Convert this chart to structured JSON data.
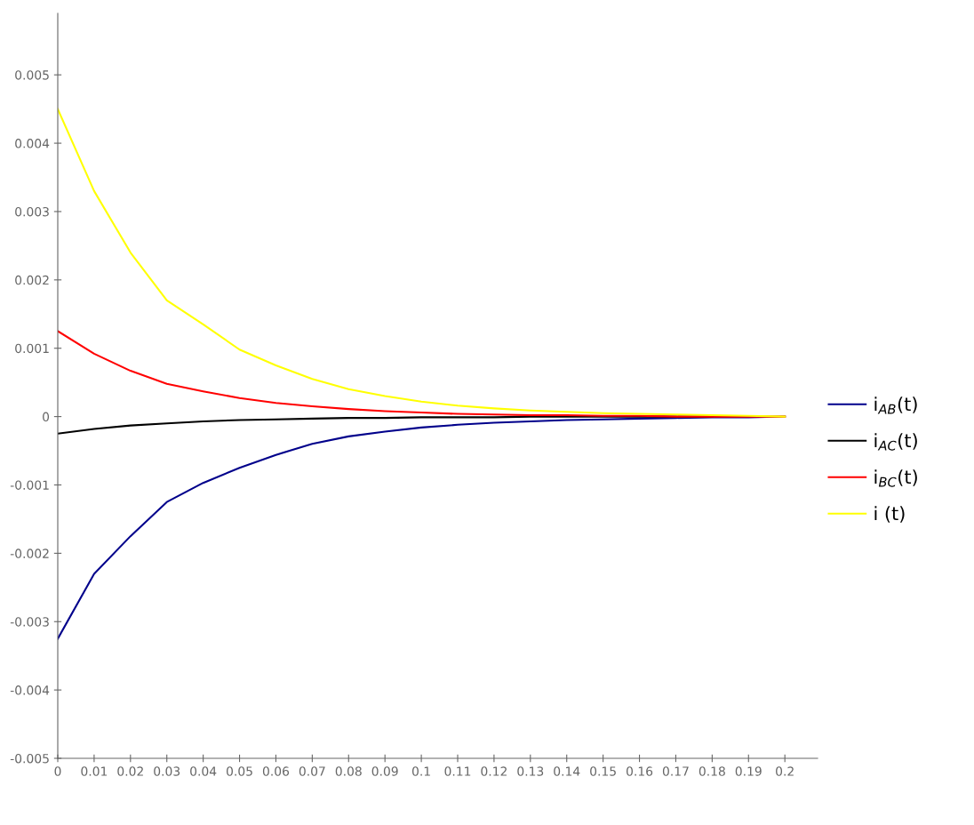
{
  "chart_data": {
    "type": "line",
    "x": [
      0,
      0.01,
      0.02,
      0.03,
      0.04,
      0.05,
      0.06,
      0.07,
      0.08,
      0.09,
      0.1,
      0.11,
      0.12,
      0.13,
      0.14,
      0.15,
      0.16,
      0.17,
      0.18,
      0.19,
      0.2
    ],
    "series": [
      {
        "name": "i$_{AB}$(t)",
        "color": "#00008b",
        "values": [
          -0.00325,
          -0.0023,
          -0.00175,
          -0.00125,
          -0.00097,
          -0.00075,
          -0.00056,
          -0.0004,
          -0.00029,
          -0.00022,
          -0.00016,
          -0.00012,
          -9e-05,
          -7e-05,
          -5e-05,
          -4e-05,
          -3e-05,
          -2e-05,
          -1e-05,
          -1e-05,
          0
        ]
      },
      {
        "name": "i$_{AC}$(t)",
        "color": "#000000",
        "values": [
          -0.00025,
          -0.00018,
          -0.00013,
          -0.0001,
          -7e-05,
          -5e-05,
          -4e-05,
          -3e-05,
          -2e-05,
          -2e-05,
          -1e-05,
          -1e-05,
          -1e-05,
          0,
          0,
          0,
          0,
          0,
          0,
          null,
          null
        ]
      },
      {
        "name": "i$_{BC}$(t)",
        "color": "#ff0000",
        "values": [
          0.00125,
          0.00092,
          0.00067,
          0.00048,
          0.00037,
          0.00027,
          0.0002,
          0.00015,
          0.00011,
          8e-05,
          6e-05,
          4e-05,
          3e-05,
          2e-05,
          2e-05,
          1e-05,
          1e-05,
          0,
          0,
          0,
          0
        ]
      },
      {
        "name": "i (t)",
        "color": "#ffff00",
        "values": [
          0.0045,
          0.0033,
          0.0024,
          0.0017,
          0.00135,
          0.00098,
          0.00075,
          0.00055,
          0.0004,
          0.0003,
          0.00022,
          0.00016,
          0.00012,
          9e-05,
          7e-05,
          5e-05,
          4e-05,
          3e-05,
          2e-05,
          1e-05,
          0
        ]
      }
    ],
    "xlim": [
      0,
      0.209
    ],
    "ylim": [
      -0.005,
      0.0059
    ],
    "xticks": [
      0,
      0.01,
      0.02,
      0.03,
      0.04,
      0.05,
      0.06,
      0.07,
      0.08,
      0.09,
      0.1,
      0.11,
      0.12,
      0.13,
      0.14,
      0.15,
      0.16,
      0.17,
      0.18,
      0.19,
      0.2
    ],
    "yticks": [
      {
        "value": -0.005,
        "label": "-0.005"
      },
      {
        "value": -0.004,
        "label": "-0.004"
      },
      {
        "value": -0.003,
        "label": "-0.003"
      },
      {
        "value": -0.002,
        "label": "-0.002"
      },
      {
        "value": -0.001,
        "label": "-0.001"
      },
      0,
      0.001,
      0.002,
      0.003,
      0.004,
      0.005
    ],
    "grid": false,
    "legend": "right",
    "line_style": "solid",
    "marker": "none"
  }
}
